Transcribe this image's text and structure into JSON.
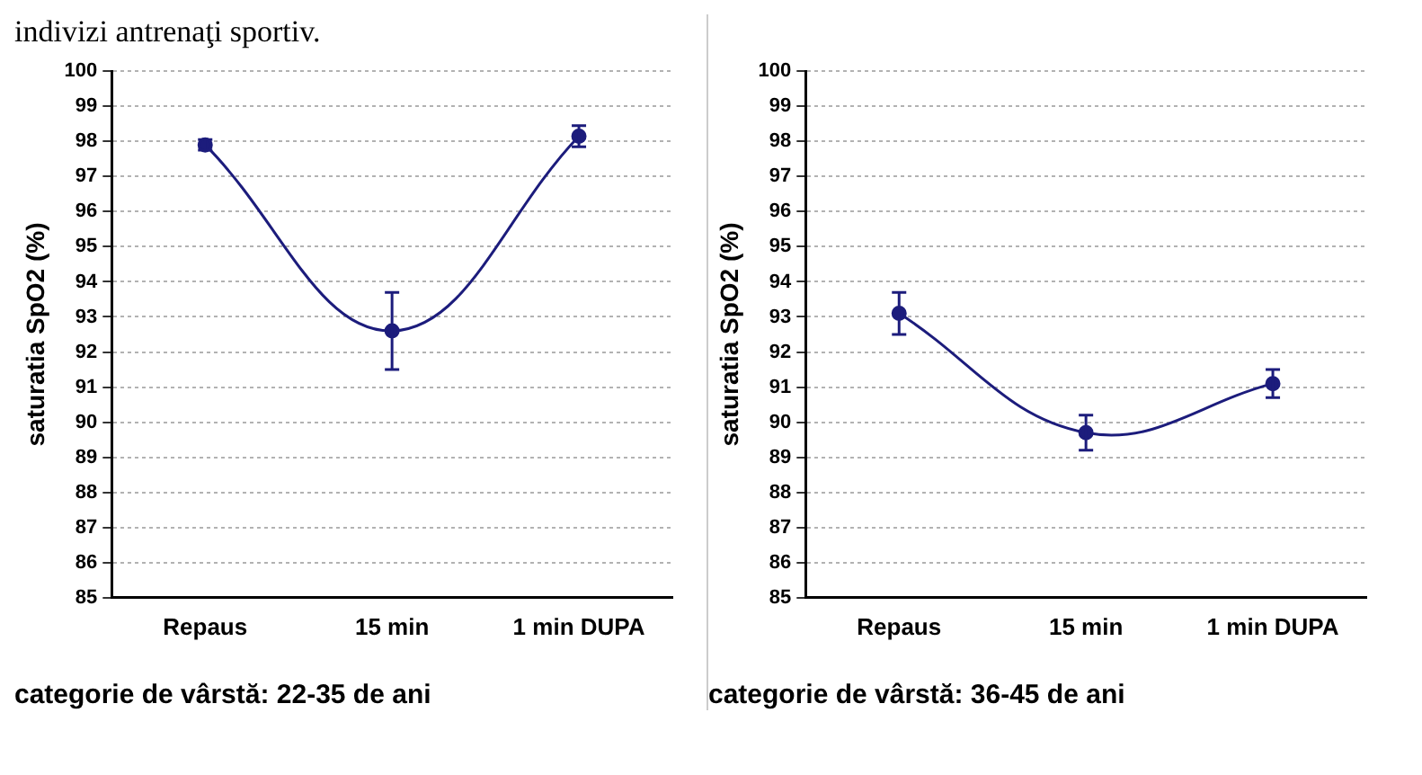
{
  "chart_data": [
    {
      "type": "line",
      "title": "indivizi antrenaţi sportiv.",
      "ylabel": "saturatia SpO2 (%)",
      "categories": [
        "Repaus",
        "15 min",
        "1 min DUPA"
      ],
      "series": [
        {
          "color": "#1c1c7c",
          "values": [
            97.9,
            92.6,
            98.15
          ],
          "errors": [
            0.15,
            1.1,
            0.3
          ]
        }
      ],
      "ylim": [
        85,
        100
      ],
      "yticks": [
        85,
        86,
        87,
        88,
        89,
        90,
        91,
        92,
        93,
        94,
        95,
        96,
        97,
        98,
        99,
        100
      ],
      "grid": "y",
      "marker": "circle",
      "legend": false,
      "annotations": [
        "categorie de vârstă: 22-35 de ani"
      ]
    },
    {
      "type": "line",
      "ylabel": "saturatia SpO2 (%)",
      "categories": [
        "Repaus",
        "15 min",
        "1 min DUPA"
      ],
      "series": [
        {
          "color": "#1c1c7c",
          "values": [
            93.1,
            89.7,
            91.1
          ],
          "errors": [
            0.6,
            0.5,
            0.4
          ]
        }
      ],
      "ylim": [
        85,
        100
      ],
      "yticks": [
        85,
        86,
        87,
        88,
        89,
        90,
        91,
        92,
        93,
        94,
        95,
        96,
        97,
        98,
        99,
        100
      ],
      "grid": "y",
      "marker": "circle",
      "legend": false,
      "annotations": [
        "categorie de vârstă: 36-45 de ani"
      ]
    }
  ]
}
